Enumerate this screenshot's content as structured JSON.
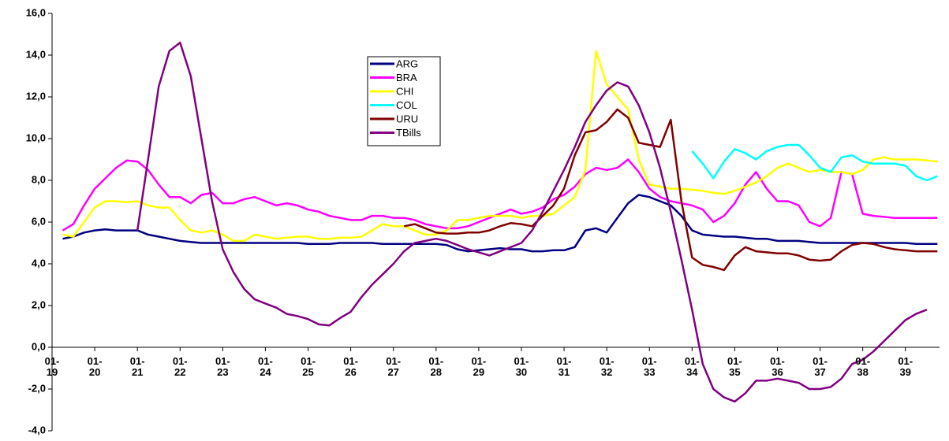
{
  "chart_data": {
    "type": "line",
    "x": [
      1919.25,
      1919.5,
      1919.75,
      1920,
      1920.25,
      1920.5,
      1920.75,
      1921,
      1921.25,
      1921.5,
      1921.75,
      1922,
      1922.25,
      1922.5,
      1922.75,
      1923,
      1923.25,
      1923.5,
      1923.75,
      1924,
      1924.25,
      1924.5,
      1924.75,
      1925,
      1925.25,
      1925.5,
      1925.75,
      1926,
      1926.25,
      1926.5,
      1926.75,
      1927,
      1927.25,
      1927.5,
      1927.75,
      1928,
      1928.25,
      1928.5,
      1928.75,
      1929,
      1929.25,
      1929.5,
      1929.75,
      1930,
      1930.25,
      1930.5,
      1930.75,
      1931,
      1931.25,
      1931.5,
      1931.75,
      1932,
      1932.25,
      1932.5,
      1932.75,
      1933,
      1933.25,
      1933.5,
      1933.75,
      1934,
      1934.25,
      1934.5,
      1934.75,
      1935,
      1935.25,
      1935.5,
      1935.75,
      1936,
      1936.25,
      1936.5,
      1936.75,
      1937,
      1937.25,
      1937.5,
      1937.75,
      1938,
      1938.25,
      1938.5,
      1938.75,
      1939,
      1939.25,
      1939.5,
      1939.75
    ],
    "series": [
      {
        "name": "ARG",
        "color": "#000080",
        "values": [
          5.2,
          5.3,
          5.5,
          5.6,
          5.65,
          5.6,
          5.6,
          5.6,
          5.4,
          5.3,
          5.2,
          5.1,
          5.05,
          5.0,
          5.0,
          5.0,
          5.0,
          5.0,
          5.0,
          5.0,
          5.0,
          5.0,
          5.0,
          4.95,
          4.95,
          4.95,
          5.0,
          5.0,
          5.0,
          5.0,
          4.95,
          4.95,
          4.95,
          4.95,
          4.95,
          4.95,
          4.9,
          4.7,
          4.6,
          4.65,
          4.7,
          4.75,
          4.7,
          4.7,
          4.6,
          4.6,
          4.65,
          4.65,
          4.8,
          5.6,
          5.7,
          5.5,
          6.2,
          6.9,
          7.3,
          7.2,
          7.0,
          6.8,
          6.3,
          5.6,
          5.4,
          5.35,
          5.3,
          5.3,
          5.25,
          5.2,
          5.2,
          5.1,
          5.1,
          5.1,
          5.05,
          5.0,
          5.0,
          5.0,
          5.0,
          5.0,
          5.0,
          5.0,
          5.0,
          5.0,
          4.95,
          4.95,
          4.95
        ]
      },
      {
        "name": "BRA",
        "color": "#ff00ff",
        "values": [
          5.6,
          5.9,
          6.8,
          7.6,
          8.1,
          8.6,
          8.95,
          8.9,
          8.5,
          7.8,
          7.2,
          7.2,
          6.9,
          7.3,
          7.4,
          6.9,
          6.9,
          7.1,
          7.2,
          7.0,
          6.8,
          6.9,
          6.8,
          6.6,
          6.5,
          6.3,
          6.2,
          6.1,
          6.1,
          6.3,
          6.3,
          6.2,
          6.2,
          6.1,
          5.9,
          5.8,
          5.7,
          5.7,
          5.8,
          6.0,
          6.2,
          6.4,
          6.6,
          6.4,
          6.5,
          6.7,
          7.1,
          7.3,
          7.7,
          8.3,
          8.6,
          8.5,
          8.6,
          9.0,
          8.4,
          7.6,
          7.2,
          7.0,
          6.9,
          6.8,
          6.6,
          6.0,
          6.3,
          6.9,
          7.8,
          8.4,
          7.6,
          7.0,
          7.0,
          6.8,
          6.0,
          5.8,
          6.2,
          8.4,
          8.3,
          6.4,
          6.3,
          6.25,
          6.2,
          6.2,
          6.2,
          6.2,
          6.2
        ]
      },
      {
        "name": "CHI",
        "color": "#ffff00",
        "values": [
          5.4,
          5.3,
          6.0,
          6.7,
          7.0,
          7.0,
          6.95,
          7.0,
          6.8,
          6.7,
          6.7,
          6.1,
          5.6,
          5.5,
          5.6,
          5.4,
          5.1,
          5.1,
          5.4,
          5.3,
          5.2,
          5.25,
          5.3,
          5.3,
          5.2,
          5.2,
          5.25,
          5.25,
          5.3,
          5.6,
          5.9,
          5.8,
          5.8,
          5.6,
          5.4,
          5.4,
          5.6,
          6.1,
          6.1,
          6.2,
          6.3,
          6.3,
          6.3,
          6.2,
          6.3,
          6.3,
          6.4,
          6.8,
          7.2,
          8.5,
          14.2,
          12.6,
          12.0,
          11.4,
          9.0,
          7.8,
          7.7,
          7.6,
          7.6,
          7.55,
          7.5,
          7.4,
          7.35,
          7.5,
          7.7,
          7.9,
          8.2,
          8.6,
          8.8,
          8.6,
          8.4,
          8.5,
          8.4,
          8.4,
          8.3,
          8.5,
          9.0,
          9.1,
          9.0,
          9.0,
          9.0,
          8.95,
          8.9
        ]
      },
      {
        "name": "COL",
        "color": "#00ffff",
        "values": [
          null,
          null,
          null,
          null,
          null,
          null,
          null,
          null,
          null,
          null,
          null,
          null,
          null,
          null,
          null,
          null,
          null,
          null,
          null,
          null,
          null,
          null,
          null,
          null,
          null,
          null,
          null,
          null,
          null,
          null,
          null,
          null,
          null,
          null,
          null,
          null,
          null,
          null,
          null,
          null,
          null,
          null,
          null,
          null,
          null,
          null,
          null,
          null,
          null,
          null,
          null,
          null,
          null,
          null,
          null,
          null,
          null,
          null,
          null,
          9.4,
          8.8,
          8.1,
          8.9,
          9.5,
          9.3,
          9.0,
          9.4,
          9.6,
          9.7,
          9.7,
          9.2,
          8.6,
          8.4,
          9.1,
          9.2,
          8.9,
          8.8,
          8.8,
          8.8,
          8.7,
          8.2,
          8.0,
          8.2
        ]
      },
      {
        "name": "URU",
        "color": "#800000",
        "values": [
          null,
          null,
          null,
          null,
          null,
          null,
          null,
          null,
          null,
          null,
          null,
          null,
          null,
          null,
          null,
          null,
          null,
          null,
          null,
          null,
          null,
          null,
          null,
          null,
          null,
          null,
          null,
          null,
          null,
          null,
          null,
          null,
          5.8,
          5.9,
          5.7,
          5.5,
          5.45,
          5.45,
          5.5,
          5.5,
          5.6,
          5.8,
          5.95,
          5.9,
          5.8,
          6.3,
          6.8,
          7.6,
          9.2,
          10.3,
          10.4,
          10.8,
          11.4,
          11.0,
          9.8,
          9.7,
          9.6,
          10.9,
          7.0,
          4.3,
          3.95,
          3.85,
          3.7,
          4.4,
          4.8,
          4.6,
          4.55,
          4.5,
          4.5,
          4.4,
          4.2,
          4.15,
          4.2,
          4.6,
          4.9,
          5.0,
          4.95,
          4.8,
          4.7,
          4.65,
          4.6,
          4.6,
          4.6
        ]
      },
      {
        "name": "TBills",
        "color": "#800080",
        "values": [
          null,
          null,
          null,
          null,
          null,
          null,
          null,
          5.6,
          9.0,
          12.5,
          14.2,
          14.6,
          13.0,
          10.0,
          7.0,
          4.7,
          3.6,
          2.8,
          2.3,
          2.1,
          1.9,
          1.6,
          1.5,
          1.35,
          1.1,
          1.05,
          1.4,
          1.7,
          2.4,
          3.0,
          3.5,
          4.0,
          4.6,
          5.0,
          5.1,
          5.2,
          5.1,
          4.9,
          4.7,
          4.55,
          4.4,
          4.6,
          4.8,
          5.0,
          5.6,
          6.5,
          7.5,
          8.5,
          9.6,
          10.8,
          11.6,
          12.3,
          12.7,
          12.5,
          11.6,
          10.3,
          8.6,
          6.5,
          4.2,
          1.8,
          -0.8,
          -2.0,
          -2.4,
          -2.6,
          -2.2,
          -1.6,
          -1.6,
          -1.5,
          -1.6,
          -1.7,
          -2.0,
          -2.0,
          -1.9,
          -1.5,
          -0.8,
          -0.6,
          -0.2,
          0.3,
          0.8,
          1.3,
          1.6,
          1.8,
          null
        ]
      }
    ],
    "xlim": [
      1919,
      1939.8
    ],
    "xticks": [
      {
        "value": 1919,
        "label": "01-19"
      },
      {
        "value": 1920,
        "label": "01-20"
      },
      {
        "value": 1921,
        "label": "01-21"
      },
      {
        "value": 1922,
        "label": "01-22"
      },
      {
        "value": 1923,
        "label": "01-23"
      },
      {
        "value": 1924,
        "label": "01-24"
      },
      {
        "value": 1925,
        "label": "01-25"
      },
      {
        "value": 1926,
        "label": "01-26"
      },
      {
        "value": 1927,
        "label": "01-27"
      },
      {
        "value": 1928,
        "label": "01-28"
      },
      {
        "value": 1929,
        "label": "01-29"
      },
      {
        "value": 1930,
        "label": "01-30"
      },
      {
        "value": 1931,
        "label": "01-31"
      },
      {
        "value": 1932,
        "label": "01-32"
      },
      {
        "value": 1933,
        "label": "01-33"
      },
      {
        "value": 1934,
        "label": "01-34"
      },
      {
        "value": 1935,
        "label": "01-35"
      },
      {
        "value": 1936,
        "label": "01-36"
      },
      {
        "value": 1937,
        "label": "01-37"
      },
      {
        "value": 1938,
        "label": "01-38"
      },
      {
        "value": 1939,
        "label": "01-39"
      }
    ],
    "ylim": [
      -4,
      16
    ],
    "yticks": [
      {
        "value": -4,
        "label": "-4,0"
      },
      {
        "value": -2,
        "label": "-2,0"
      },
      {
        "value": 0,
        "label": "0,0"
      },
      {
        "value": 2,
        "label": "2,0"
      },
      {
        "value": 4,
        "label": "4,0"
      },
      {
        "value": 6,
        "label": "6,0"
      },
      {
        "value": 8,
        "label": "8,0"
      },
      {
        "value": 10,
        "label": "10,0"
      },
      {
        "value": 12,
        "label": "12,0"
      },
      {
        "value": 14,
        "label": "14,0"
      },
      {
        "value": 16,
        "label": "16,0"
      }
    ]
  }
}
